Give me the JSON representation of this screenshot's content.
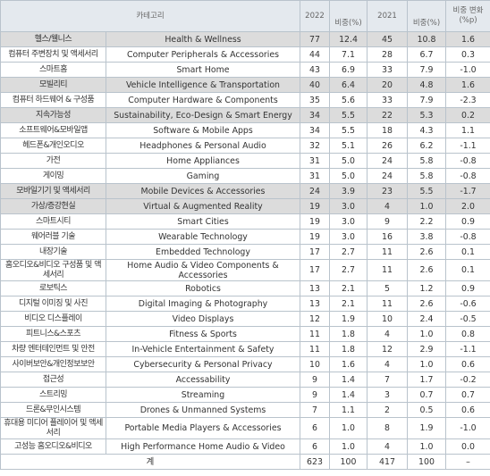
{
  "table": {
    "header": [
      "카테고리",
      "2022",
      "비중(%)",
      "2021",
      "비중(%)",
      "비중 변화 (%p)"
    ],
    "rows": [
      [
        "헬스/웰니스",
        "Health & Wellness",
        "77",
        "12.4",
        "45",
        "10.8",
        "1.6"
      ],
      [
        "컴퓨터 주변장치 및 액세서리",
        "Computer Peripherals & Accessories",
        "44",
        "7.1",
        "28",
        "6.7",
        "0.3"
      ],
      [
        "스마트홈",
        "Smart Home",
        "43",
        "6.9",
        "33",
        "7.9",
        "-1.0"
      ],
      [
        "모빌리티",
        "Vehicle Intelligence & Transportation",
        "40",
        "6.4",
        "20",
        "4.8",
        "1.6"
      ],
      [
        "컴퓨터 하드웨어 & 구성품",
        "Computer Hardware & Components",
        "35",
        "5.6",
        "33",
        "7.9",
        "-2.3"
      ],
      [
        "지속가능성",
        "Sustainability, Eco-Design & Smart Energy",
        "34",
        "5.5",
        "22",
        "5.3",
        "0.2"
      ],
      [
        "소프트웨어&모바일앱",
        "Software & Mobile Apps",
        "34",
        "5.5",
        "18",
        "4.3",
        "1.1"
      ],
      [
        "헤드폰&개인오디오",
        "Headphones & Personal Audio",
        "32",
        "5.1",
        "26",
        "6.2",
        "-1.1"
      ],
      [
        "가전",
        "Home Appliances",
        "31",
        "5.0",
        "24",
        "5.8",
        "-0.8"
      ],
      [
        "게이밍",
        "Gaming",
        "31",
        "5.0",
        "24",
        "5.8",
        "-0.8"
      ],
      [
        "모바일기기 및 액세서리",
        "Mobile Devices & Accessories",
        "24",
        "3.9",
        "23",
        "5.5",
        "-1.7"
      ],
      [
        "가상/증강현실",
        "Virtual & Augmented Reality",
        "19",
        "3.0",
        "4",
        "1.0",
        "2.0"
      ],
      [
        "스마트시티",
        "Smart Cities",
        "19",
        "3.0",
        "9",
        "2.2",
        "0.9"
      ],
      [
        "웨어러블 기술",
        "Wearable Technology",
        "19",
        "3.0",
        "16",
        "3.8",
        "-0.8"
      ],
      [
        "내장기술",
        "Embedded Technology",
        "17",
        "2.7",
        "11",
        "2.6",
        "0.1"
      ],
      [
        "홈오디오&비디오 구성품 및 액세서리",
        "Home Audio & Video Components & Accessories",
        "17",
        "2.7",
        "11",
        "2.6",
        "0.1"
      ],
      [
        "로보틱스",
        "Robotics",
        "13",
        "2.1",
        "5",
        "1.2",
        "0.9"
      ],
      [
        "디지털 이미징 및 사진",
        "Digital Imaging & Photography",
        "13",
        "2.1",
        "11",
        "2.6",
        "-0.6"
      ],
      [
        "비디오 디스플레이",
        "Video Displays",
        "12",
        "1.9",
        "10",
        "2.4",
        "-0.5"
      ],
      [
        "피트니스&스포츠",
        "Fitness & Sports",
        "11",
        "1.8",
        "4",
        "1.0",
        "0.8"
      ],
      [
        "차량 엔터테인먼트 및 안전",
        "In-Vehicle Entertainment & Safety",
        "11",
        "1.8",
        "12",
        "2.9",
        "-1.1"
      ],
      [
        "사이버보안&개인정보보안",
        "Cybersecurity & Personal Privacy",
        "10",
        "1.6",
        "4",
        "1.0",
        "0.6"
      ],
      [
        "접근성",
        "Accessability",
        "9",
        "1.4",
        "7",
        "1.7",
        "-0.2"
      ],
      [
        "스트리밍",
        "Streaming",
        "9",
        "1.4",
        "3",
        "0.7",
        "0.7"
      ],
      [
        "드론&무인시스템",
        "Drones & Unmanned Systems",
        "7",
        "1.1",
        "2",
        "0.5",
        "0.6"
      ],
      [
        "휴대용 미디어 플레이어 및 액세서리",
        "Portable Media Players & Accessories",
        "6",
        "1.0",
        "8",
        "1.9",
        "-1.0"
      ],
      [
        "고성능 홈오디오&비디오",
        "High Performance Home Audio & Video",
        "6",
        "1.0",
        "4",
        "1.0",
        "0.0"
      ]
    ],
    "total": [
      "계",
      "623",
      "100",
      "417",
      "100",
      "–"
    ]
  }
}
